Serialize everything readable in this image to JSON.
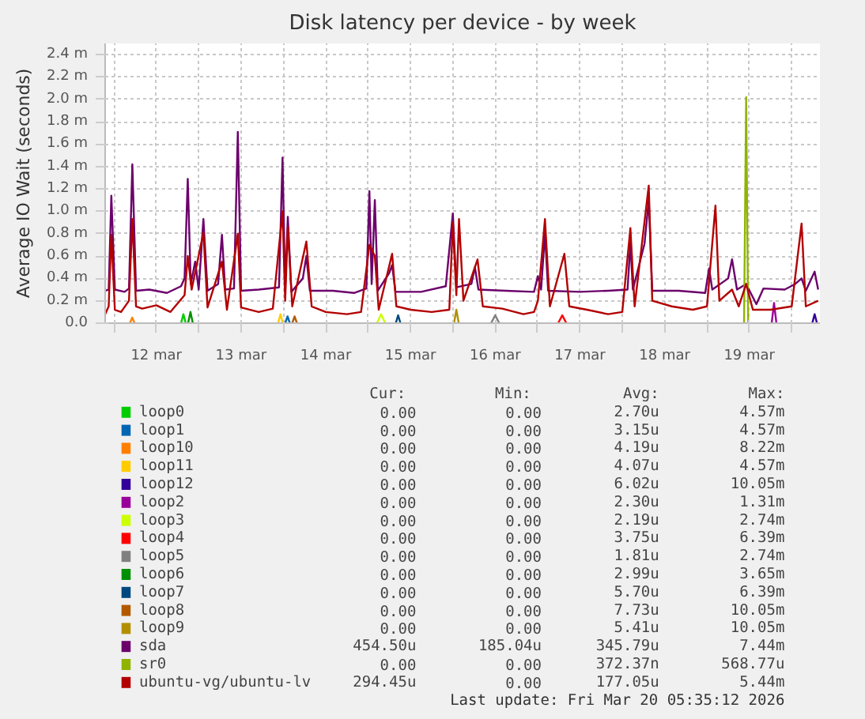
{
  "chart_data": {
    "type": "line",
    "title": "Disk latency per device - by week",
    "ylabel": "Average IO Wait (seconds)",
    "xlim": [
      "2026-03-11T21:30",
      "2026-03-20T08:00"
    ],
    "xticks": [
      {
        "value": "2026-03-12T00:00",
        "label": null
      },
      {
        "value": "2026-03-12T12:00",
        "label": "12 mar"
      },
      {
        "value": "2026-03-13T00:00",
        "label": null
      },
      {
        "value": "2026-03-13T12:00",
        "label": "13 mar"
      },
      {
        "value": "2026-03-14T00:00",
        "label": null
      },
      {
        "value": "2026-03-14T12:00",
        "label": "14 mar"
      },
      {
        "value": "2026-03-15T00:00",
        "label": null
      },
      {
        "value": "2026-03-15T12:00",
        "label": "15 mar"
      },
      {
        "value": "2026-03-16T00:00",
        "label": null
      },
      {
        "value": "2026-03-16T12:00",
        "label": "16 mar"
      },
      {
        "value": "2026-03-17T00:00",
        "label": null
      },
      {
        "value": "2026-03-17T12:00",
        "label": "17 mar"
      },
      {
        "value": "2026-03-18T00:00",
        "label": null
      },
      {
        "value": "2026-03-18T12:00",
        "label": "18 mar"
      },
      {
        "value": "2026-03-19T00:00",
        "label": null
      },
      {
        "value": "2026-03-19T12:00",
        "label": "19 mar"
      },
      {
        "value": "2026-03-20T00:00",
        "label": null
      }
    ],
    "ylim": [
      0,
      2.5
    ],
    "yticks": [
      {
        "value": 0,
        "label": "0.0"
      },
      {
        "value": 0.2,
        "label": "0.2 m"
      },
      {
        "value": 0.4,
        "label": "0.4 m"
      },
      {
        "value": 0.6,
        "label": "0.6 m"
      },
      {
        "value": 0.8,
        "label": "0.8 m"
      },
      {
        "value": 1.0,
        "label": "1.0 m"
      },
      {
        "value": 1.2,
        "label": "1.2 m"
      },
      {
        "value": 1.4,
        "label": "1.4 m"
      },
      {
        "value": 1.6,
        "label": "1.6 m"
      },
      {
        "value": 1.8,
        "label": "1.8 m"
      },
      {
        "value": 2.0,
        "label": "2.0 m"
      },
      {
        "value": 2.2,
        "label": "2.2 m"
      },
      {
        "value": 2.4,
        "label": "2.4 m"
      }
    ],
    "grid": true,
    "legend": "bottom",
    "line_style": "solid",
    "marker": "none",
    "series": [
      {
        "name": "loop0",
        "color": "#00cc00",
        "x": [
          "2026-03-12T19:00",
          "2026-03-12T19:40",
          "2026-03-12T20:20"
        ],
        "values": [
          0,
          0.08,
          0
        ]
      },
      {
        "name": "loop1",
        "color": "#0066b3",
        "x": [
          "2026-03-14T00:30",
          "2026-03-14T01:10",
          "2026-03-14T01:50"
        ],
        "values": [
          0,
          0.06,
          0
        ]
      },
      {
        "name": "loop10",
        "color": "#ff8000",
        "x": [
          "2026-03-12T04:30",
          "2026-03-12T05:10",
          "2026-03-12T05:50"
        ],
        "values": [
          0,
          0.05,
          0
        ]
      },
      {
        "name": "loop11",
        "color": "#ffcc00",
        "x": [
          "2026-03-13T22:30",
          "2026-03-13T23:10",
          "2026-03-13T23:50"
        ],
        "values": [
          0,
          0.08,
          0
        ]
      },
      {
        "name": "loop12",
        "color": "#330099",
        "x": [
          "2026-03-20T05:50",
          "2026-03-20T06:30",
          "2026-03-20T07:10"
        ],
        "values": [
          0,
          0.08,
          0
        ]
      },
      {
        "name": "loop2",
        "color": "#990099",
        "x": [
          "2026-03-19T18:20",
          "2026-03-19T19:00",
          "2026-03-19T19:40"
        ],
        "values": [
          0,
          0.18,
          0
        ]
      },
      {
        "name": "loop3",
        "color": "#ccff00",
        "x": [
          "2026-03-15T02:30",
          "2026-03-15T03:40",
          "2026-03-15T04:50"
        ],
        "values": [
          0,
          0.08,
          0
        ]
      },
      {
        "name": "loop4",
        "color": "#ff0000",
        "x": [
          "2026-03-17T05:50",
          "2026-03-17T07:00",
          "2026-03-17T08:10"
        ],
        "values": [
          0,
          0.07,
          0
        ]
      },
      {
        "name": "loop5",
        "color": "#808080",
        "x": [
          "2026-03-16T10:50",
          "2026-03-16T12:00",
          "2026-03-16T13:10"
        ],
        "values": [
          0,
          0.07,
          0
        ]
      },
      {
        "name": "loop6",
        "color": "#008f00",
        "x": [
          "2026-03-12T21:00",
          "2026-03-12T21:40",
          "2026-03-12T22:20"
        ],
        "values": [
          0,
          0.1,
          0
        ]
      },
      {
        "name": "loop7",
        "color": "#00487d",
        "x": [
          "2026-03-15T07:50",
          "2026-03-15T08:30",
          "2026-03-15T09:10"
        ],
        "values": [
          0,
          0.07,
          0
        ]
      },
      {
        "name": "loop8",
        "color": "#b35a00",
        "x": [
          "2026-03-14T02:30",
          "2026-03-14T03:10",
          "2026-03-14T03:50"
        ],
        "values": [
          0,
          0.06,
          0
        ]
      },
      {
        "name": "loop9",
        "color": "#b38f00",
        "x": [
          "2026-03-16T00:20",
          "2026-03-16T01:00",
          "2026-03-16T01:40"
        ],
        "values": [
          0,
          0.12,
          0
        ]
      },
      {
        "name": "sda",
        "color": "#6b006b",
        "x": [
          "2026-03-11T21:30",
          "2026-03-11T22:30",
          "2026-03-11T23:15",
          "2026-03-12T00:15",
          "2026-03-12T03:00",
          "2026-03-12T04:15",
          "2026-03-12T05:12",
          "2026-03-12T06:15",
          "2026-03-12T10:00",
          "2026-03-12T15:00",
          "2026-03-12T19:00",
          "2026-03-12T20:00",
          "2026-03-12T20:54",
          "2026-03-12T21:45",
          "2026-03-12T23:00",
          "2026-03-13T00:00",
          "2026-03-13T01:20",
          "2026-03-13T02:30",
          "2026-03-13T05:30",
          "2026-03-13T06:35",
          "2026-03-13T07:30",
          "2026-03-13T10:00",
          "2026-03-13T11:05",
          "2026-03-13T12:00",
          "2026-03-13T17:00",
          "2026-03-13T22:45",
          "2026-03-13T23:45",
          "2026-03-14T00:30",
          "2026-03-14T01:15",
          "2026-03-14T02:15",
          "2026-03-14T05:30",
          "2026-03-14T06:30",
          "2026-03-14T07:30",
          "2026-03-14T14:00",
          "2026-03-14T20:00",
          "2026-03-14T23:30",
          "2026-03-15T00:22",
          "2026-03-15T01:00",
          "2026-03-15T01:54",
          "2026-03-15T02:45",
          "2026-03-15T06:00",
          "2026-03-15T06:48",
          "2026-03-15T07:45",
          "2026-03-15T15:00",
          "2026-03-15T22:00",
          "2026-03-16T00:00",
          "2026-03-16T01:00",
          "2026-03-16T05:15",
          "2026-03-16T06:15",
          "2026-03-16T07:15",
          "2026-03-16T15:00",
          "2026-03-16T23:00",
          "2026-03-17T00:06",
          "2026-03-17T01:00",
          "2026-03-17T02:06",
          "2026-03-17T03:00",
          "2026-03-17T12:00",
          "2026-03-17T20:00",
          "2026-03-18T01:30",
          "2026-03-18T02:18",
          "2026-03-18T03:00",
          "2026-03-18T06:18",
          "2026-03-18T07:30",
          "2026-03-18T08:30",
          "2026-03-18T16:00",
          "2026-03-18T23:30",
          "2026-03-19T00:36",
          "2026-03-19T01:30",
          "2026-03-19T06:00",
          "2026-03-19T07:06",
          "2026-03-19T08:30",
          "2026-03-19T11:06",
          "2026-03-19T14:00",
          "2026-03-19T16:00",
          "2026-03-19T22:00",
          "2026-03-20T01:00",
          "2026-03-20T02:48",
          "2026-03-20T04:00",
          "2026-03-20T06:30",
          "2026-03-20T07:30"
        ],
        "values": [
          0.29,
          0.3,
          1.14,
          0.3,
          0.28,
          0.31,
          1.42,
          0.29,
          0.3,
          0.27,
          0.33,
          0.4,
          1.29,
          0.35,
          0.55,
          0.3,
          0.93,
          0.29,
          0.35,
          0.79,
          0.3,
          0.31,
          1.71,
          0.29,
          0.3,
          0.32,
          1.48,
          0.3,
          0.95,
          0.28,
          0.4,
          0.6,
          0.29,
          0.29,
          0.27,
          0.31,
          1.18,
          0.35,
          1.1,
          0.29,
          0.45,
          0.52,
          0.28,
          0.28,
          0.33,
          0.98,
          0.32,
          0.35,
          0.5,
          0.3,
          0.29,
          0.28,
          0.42,
          0.3,
          0.8,
          0.29,
          0.28,
          0.29,
          0.3,
          0.72,
          0.3,
          0.71,
          1.1,
          0.29,
          0.29,
          0.27,
          0.49,
          0.3,
          0.4,
          0.57,
          0.3,
          0.35,
          0.17,
          0.31,
          0.3,
          0.35,
          0.4,
          0.29,
          0.46,
          0.3
        ]
      },
      {
        "name": "sr0",
        "color": "#8fb300",
        "x": [
          "2026-03-19T10:30",
          "2026-03-19T11:06",
          "2026-03-19T11:40"
        ],
        "values": [
          0,
          2.02,
          0
        ]
      },
      {
        "name": "ubuntu-vg/ubuntu-lv",
        "color": "#b30000",
        "x": [
          "2026-03-11T21:30",
          "2026-03-11T22:30",
          "2026-03-11T23:15",
          "2026-03-12T00:15",
          "2026-03-12T02:00",
          "2026-03-12T04:15",
          "2026-03-12T05:12",
          "2026-03-12T06:15",
          "2026-03-12T08:00",
          "2026-03-12T12:00",
          "2026-03-12T16:00",
          "2026-03-12T20:00",
          "2026-03-12T20:54",
          "2026-03-12T22:00",
          "2026-03-13T01:20",
          "2026-03-13T02:30",
          "2026-03-13T06:35",
          "2026-03-13T08:00",
          "2026-03-13T11:05",
          "2026-03-13T12:00",
          "2026-03-13T17:00",
          "2026-03-13T21:00",
          "2026-03-13T23:45",
          "2026-03-14T00:30",
          "2026-03-14T01:15",
          "2026-03-14T02:30",
          "2026-03-14T06:30",
          "2026-03-14T08:00",
          "2026-03-14T12:00",
          "2026-03-14T18:00",
          "2026-03-14T22:00",
          "2026-03-15T00:22",
          "2026-03-15T01:54",
          "2026-03-15T03:00",
          "2026-03-15T06:48",
          "2026-03-15T08:00",
          "2026-03-15T12:00",
          "2026-03-15T18:00",
          "2026-03-15T23:00",
          "2026-03-16T00:00",
          "2026-03-16T01:00",
          "2026-03-16T01:45",
          "2026-03-16T03:00",
          "2026-03-16T07:00",
          "2026-03-16T08:30",
          "2026-03-16T14:00",
          "2026-03-16T20:00",
          "2026-03-16T23:00",
          "2026-03-17T00:06",
          "2026-03-17T02:06",
          "2026-03-17T03:30",
          "2026-03-17T07:36",
          "2026-03-17T09:00",
          "2026-03-17T14:00",
          "2026-03-17T20:00",
          "2026-03-18T00:00",
          "2026-03-18T02:18",
          "2026-03-18T03:30",
          "2026-03-18T07:30",
          "2026-03-18T08:30",
          "2026-03-18T14:00",
          "2026-03-18T20:00",
          "2026-03-19T00:00",
          "2026-03-19T02:24",
          "2026-03-19T03:30",
          "2026-03-19T07:06",
          "2026-03-19T09:00",
          "2026-03-19T11:06",
          "2026-03-19T13:00",
          "2026-03-19T18:00",
          "2026-03-20T00:00",
          "2026-03-20T02:48",
          "2026-03-20T04:00",
          "2026-03-20T07:30"
        ],
        "values": [
          0.08,
          0.15,
          0.79,
          0.12,
          0.1,
          0.2,
          0.93,
          0.15,
          0.13,
          0.16,
          0.1,
          0.25,
          0.6,
          0.3,
          0.81,
          0.14,
          0.55,
          0.12,
          0.8,
          0.14,
          0.1,
          0.13,
          1.0,
          0.2,
          0.86,
          0.15,
          0.73,
          0.15,
          0.1,
          0.08,
          0.1,
          0.7,
          0.6,
          0.12,
          0.62,
          0.15,
          0.12,
          0.1,
          0.12,
          0.9,
          0.25,
          0.93,
          0.2,
          0.57,
          0.15,
          0.13,
          0.08,
          0.1,
          0.2,
          0.93,
          0.15,
          0.62,
          0.15,
          0.12,
          0.08,
          0.1,
          0.85,
          0.15,
          1.23,
          0.2,
          0.15,
          0.12,
          0.15,
          1.05,
          0.2,
          0.3,
          0.15,
          0.35,
          0.12,
          0.12,
          0.15,
          0.89,
          0.15,
          0.2
        ]
      }
    ],
    "annotations": [
      "Cur:",
      "Min:",
      "Avg:",
      "Max:",
      "0.00",
      "0.00",
      "2.70u",
      "4.57m",
      "0.00",
      "0.00",
      "3.15u",
      "4.57m",
      "0.00",
      "0.00",
      "4.19u",
      "8.22m",
      "0.00",
      "0.00",
      "4.07u",
      "4.57m",
      "0.00",
      "0.00",
      "6.02u",
      "10.05m",
      "0.00",
      "0.00",
      "2.30u",
      "1.31m",
      "0.00",
      "0.00",
      "2.19u",
      "2.74m",
      "0.00",
      "0.00",
      "3.75u",
      "6.39m",
      "0.00",
      "0.00",
      "1.81u",
      "2.74m",
      "0.00",
      "0.00",
      "2.99u",
      "3.65m",
      "0.00",
      "0.00",
      "5.70u",
      "6.39m",
      "0.00",
      "0.00",
      "7.73u",
      "10.05m",
      "0.00",
      "0.00",
      "5.41u",
      "10.05m",
      "454.50u",
      "185.04u",
      "345.79u",
      "7.44m",
      "0.00",
      "0.00",
      "372.37n",
      "568.77u",
      "294.45u",
      "0.00",
      "177.05u",
      "5.44m",
      "Last update: Fri Mar 20 05:35:12 2026"
    ]
  }
}
